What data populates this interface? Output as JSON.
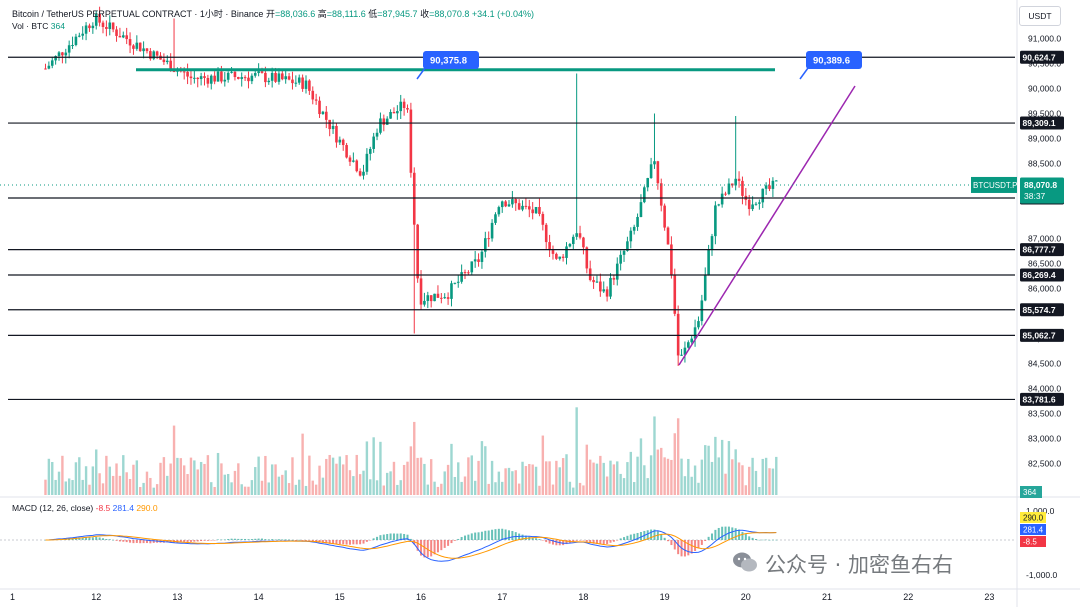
{
  "header": {
    "symbol_line": "Bitcoin / TetherUS PERPETUAL CONTRACT · 1小时 · Binance",
    "open_label": "开",
    "open": "=88,036.6",
    "high_label": "高",
    "high": "=88,111.6",
    "low_label": "低",
    "low": "=87,945.7",
    "close_label": "收",
    "close": "=88,070.8",
    "change": "+34.1 (+0.04%)",
    "vol_label": "Vol · BTC",
    "vol_value": "364"
  },
  "currency_button": "USDT",
  "macd_header": {
    "label": "MACD (12, 26, close)",
    "v1": "-8.5",
    "v2": "281.4",
    "v3": "290.0"
  },
  "watermark": "公众号 · 加密鱼右右",
  "colors": {
    "up": "#089981",
    "down": "#f23645",
    "up_bar": "#26a69a",
    "down_bar": "#ef5350",
    "macd_line": "#2962ff",
    "signal_line": "#ff9800",
    "trendline": "#9c27b0",
    "channel": "#089981"
  },
  "chart_data": {
    "type": "candlestick",
    "timeframe": "1小时",
    "x_ticks": [
      "1",
      "12",
      "13",
      "14",
      "15",
      "16",
      "17",
      "18",
      "19",
      "20",
      "21",
      "22",
      "23"
    ],
    "price_ticks": [
      "91,000.0",
      "90,500.0",
      "90,000.0",
      "89,500.0",
      "89,000.0",
      "88,500.0",
      "87,000.0",
      "86,500.0",
      "86,000.0",
      "85,000.0",
      "84,500.0",
      "84,000.0",
      "83,500.0",
      "83,000.0",
      "82,500.0"
    ],
    "ylim": [
      81950,
      91450
    ],
    "horizontal_levels": [
      "90,624.7",
      "89,309.1",
      "87,810.0",
      "86,777.7",
      "86,269.4",
      "85,574.7",
      "85,062.7",
      "83,781.6"
    ],
    "callouts": [
      "90,375.8",
      "90,389.6"
    ],
    "current_price": {
      "label": "BTCUSDT.P",
      "price": "88,070.8",
      "timer": "38:37"
    },
    "volume_badge": "364",
    "macd_ticks": [
      "1,000.0",
      "-1,000.0"
    ],
    "macd_badges": [
      "290.0",
      "281.4",
      "-8.5"
    ],
    "key_points": [
      {
        "day": 11.4,
        "price": 90400
      },
      {
        "day": 12.0,
        "price": 91400
      },
      {
        "day": 13.2,
        "price": 90200
      },
      {
        "day": 14.0,
        "price": 90250
      },
      {
        "day": 14.6,
        "price": 90100
      },
      {
        "day": 15.0,
        "price": 89000
      },
      {
        "day": 15.3,
        "price": 88300
      },
      {
        "day": 15.5,
        "price": 89300
      },
      {
        "day": 15.85,
        "price": 89700
      },
      {
        "day": 16.0,
        "price": 85800
      },
      {
        "day": 16.35,
        "price": 85900
      },
      {
        "day": 16.75,
        "price": 86600
      },
      {
        "day": 17.0,
        "price": 87800
      },
      {
        "day": 17.45,
        "price": 87500
      },
      {
        "day": 17.7,
        "price": 86500
      },
      {
        "day": 17.95,
        "price": 87200
      },
      {
        "day": 18.1,
        "price": 86200
      },
      {
        "day": 18.3,
        "price": 85900
      },
      {
        "day": 18.65,
        "price": 87200
      },
      {
        "day": 18.9,
        "price": 88600
      },
      {
        "day": 19.1,
        "price": 86500
      },
      {
        "day": 19.2,
        "price": 84500
      },
      {
        "day": 19.45,
        "price": 85400
      },
      {
        "day": 19.65,
        "price": 87600
      },
      {
        "day": 19.9,
        "price": 88200
      },
      {
        "day": 20.05,
        "price": 87700
      },
      {
        "day": 20.4,
        "price": 88070
      }
    ]
  }
}
